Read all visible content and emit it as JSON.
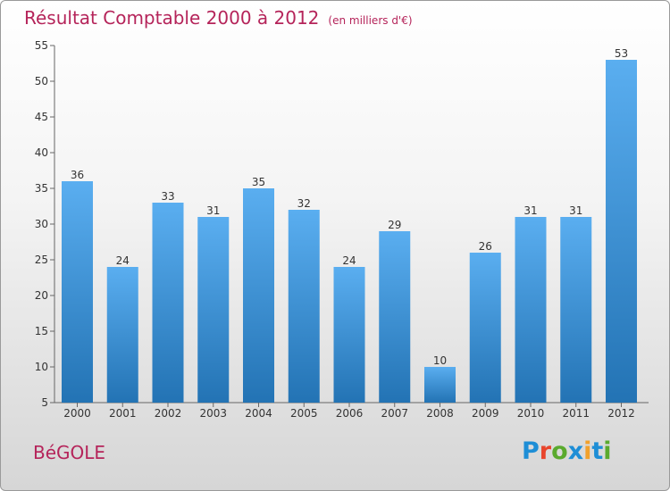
{
  "chart_data": {
    "type": "bar",
    "title": "Résultat Comptable 2000 à 2012",
    "subtitle": "(en milliers d'€)",
    "categories": [
      "2000",
      "2001",
      "2002",
      "2003",
      "2004",
      "2005",
      "2006",
      "2007",
      "2008",
      "2009",
      "2010",
      "2011",
      "2012"
    ],
    "values": [
      36,
      24,
      33,
      31,
      35,
      32,
      24,
      29,
      10,
      26,
      31,
      31,
      53
    ],
    "ylim": [
      5,
      55
    ],
    "yticks": [
      5,
      10,
      15,
      20,
      25,
      30,
      35,
      40,
      45,
      50,
      55
    ],
    "grid": false,
    "colors": {
      "bar_light": "#5aaef0",
      "bar_dark": "#2373b4",
      "title": "#b5245a"
    }
  },
  "place_name": "BéGOLE",
  "logo": {
    "text": "Proxiti",
    "colors": [
      "#1e8ed6",
      "#e8452c",
      "#5aaa2e",
      "#1e8ed6",
      "#f2a12b",
      "#1e8ed6",
      "#5aaa2e"
    ]
  }
}
